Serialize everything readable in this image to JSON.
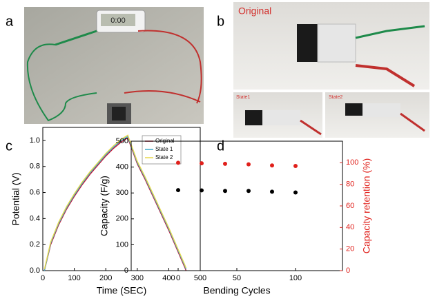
{
  "figure": {
    "panels": [
      "a",
      "b",
      "c",
      "d"
    ],
    "timer": "0:00",
    "photo_labels": [
      "Original",
      "State1",
      "State2"
    ]
  },
  "chart_data": [
    {
      "type": "line",
      "x_label": "Time (SEC)",
      "y_label": "Potential (V)",
      "x": [
        5,
        25,
        50,
        75,
        100,
        125,
        150,
        175,
        200,
        225,
        250,
        270,
        300,
        325,
        350,
        375,
        400,
        425,
        450,
        455
      ],
      "series": [
        {
          "name": "Original",
          "color": "#c8102e",
          "values": [
            0,
            0.2,
            0.35,
            0.47,
            0.57,
            0.66,
            0.74,
            0.81,
            0.88,
            0.94,
            0.99,
            1.02,
            0.82,
            0.7,
            0.57,
            0.44,
            0.31,
            0.17,
            0.03,
            0
          ]
        },
        {
          "name": "State 1",
          "color": "#3ba7c9",
          "values": [
            0,
            0.21,
            0.36,
            0.48,
            0.58,
            0.67,
            0.75,
            0.82,
            0.89,
            0.95,
            1.0,
            1.03,
            0.83,
            0.71,
            0.58,
            0.45,
            0.32,
            0.18,
            0.04,
            0.01
          ]
        },
        {
          "name": "State 2",
          "color": "#e8d84a",
          "values": [
            0.01,
            0.22,
            0.37,
            0.49,
            0.59,
            0.68,
            0.76,
            0.83,
            0.9,
            0.96,
            1.01,
            1.04,
            0.84,
            0.72,
            0.59,
            0.46,
            0.33,
            0.19,
            0.05,
            0.02
          ]
        }
      ],
      "xlim": [
        0,
        500
      ],
      "xticks": [
        0,
        100,
        200,
        300,
        400,
        500
      ],
      "ylim": [
        0,
        1.1
      ],
      "yticks": [
        {
          "value": 0,
          "label": "0.0"
        },
        {
          "value": 0.2,
          "label": "0.2"
        },
        {
          "value": 0.4,
          "label": "0.4"
        },
        {
          "value": 0.6,
          "label": "0.6"
        },
        {
          "value": 0.8,
          "label": "0.8"
        },
        {
          "value": 1.0,
          "label": "1.0"
        }
      ],
      "legend": "upper right"
    },
    {
      "type": "scatter",
      "x_label": "Bending Cycles",
      "y_label": "Capacity (F/g)",
      "y2_label": "Capacity retention (%)",
      "x": [
        0,
        20,
        40,
        60,
        80,
        100
      ],
      "series": [
        {
          "name": "Capacity",
          "color": "#000000",
          "values": [
            311,
            310,
            308,
            308,
            305,
            302
          ]
        },
        {
          "name": "Capacity retention",
          "color": "#e0201b",
          "axis": "y2",
          "values": [
            100,
            99.5,
            99,
            98.5,
            97.5,
            97
          ]
        }
      ],
      "xlim": [
        -40,
        140
      ],
      "xticks": [
        0,
        50,
        100
      ],
      "ylim": [
        0,
        500
      ],
      "yticks": [
        0,
        100,
        200,
        300,
        400,
        500
      ],
      "y2lim": [
        0,
        120
      ],
      "y2ticks": [
        0,
        20,
        40,
        60,
        80,
        100
      ]
    }
  ]
}
